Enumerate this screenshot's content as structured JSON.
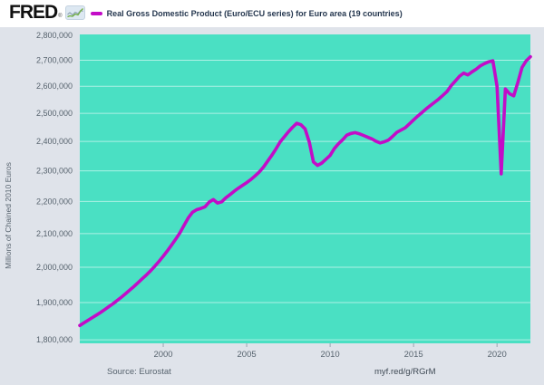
{
  "header": {
    "logo_text": "FRED",
    "registered": "®",
    "legend": {
      "swatch_color": "#c30cc7"
    }
  },
  "colors": {
    "page_bg": "#dfe3ea",
    "header_bg": "#ffffff",
    "plot_bg": "#4ae0c3",
    "grid": "rgba(255,255,255,0.55)",
    "line": "#c30cc7",
    "tick_text": "#57636e"
  },
  "chart_data": {
    "type": "line",
    "title": "Real Gross Domestic Product (Euro/ECU series) for Euro area (19 countries)",
    "ylabel": "Millions of Chained 2010 Euros",
    "xlabel": "",
    "y_scale": "log",
    "ylim": [
      1791000,
      2803000
    ],
    "grid": true,
    "legend_position": "top",
    "y_ticks": [
      {
        "value": 2800000,
        "label": "2,800,000"
      },
      {
        "value": 2700000,
        "label": "2,700,000"
      },
      {
        "value": 2600000,
        "label": "2,600,000"
      },
      {
        "value": 2500000,
        "label": "2,500,000"
      },
      {
        "value": 2400000,
        "label": "2,400,000"
      },
      {
        "value": 2300000,
        "label": "2,300,000"
      },
      {
        "value": 2200000,
        "label": "2,200,000"
      },
      {
        "value": 2100000,
        "label": "2,100,000"
      },
      {
        "value": 2000000,
        "label": "2,000,000"
      },
      {
        "value": 1900000,
        "label": "1,900,000"
      },
      {
        "value": 1800000,
        "label": "1,800,000"
      }
    ],
    "x_ticks": [
      2000,
      2005,
      2010,
      2015,
      2020
    ],
    "x_range": [
      1995.0,
      2022.0
    ],
    "frequency": "quarterly",
    "series": [
      {
        "name": "Real Gross Domestic Product (Euro/ECU series) for Euro area (19 countries)",
        "color": "#c30cc7",
        "start_year": 1995.0,
        "step_years": 0.25,
        "values": [
          1838000,
          1845000,
          1852000,
          1859000,
          1866000,
          1873000,
          1881000,
          1889000,
          1897000,
          1906000,
          1915000,
          1925000,
          1935000,
          1945000,
          1956000,
          1967000,
          1978000,
          1990000,
          2003000,
          2017000,
          2032000,
          2048000,
          2065000,
          2083000,
          2102000,
          2125000,
          2148000,
          2166000,
          2174000,
          2178000,
          2183000,
          2198000,
          2206000,
          2195000,
          2199000,
          2212000,
          2222000,
          2233000,
          2243000,
          2252000,
          2261000,
          2271000,
          2283000,
          2296000,
          2312000,
          2332000,
          2352000,
          2374000,
          2398000,
          2416000,
          2434000,
          2450000,
          2464000,
          2459000,
          2444000,
          2398000,
          2330000,
          2318000,
          2326000,
          2339000,
          2352000,
          2375000,
          2392000,
          2406000,
          2422000,
          2428000,
          2431000,
          2427000,
          2421000,
          2415000,
          2409000,
          2401000,
          2395000,
          2399000,
          2405000,
          2418000,
          2432000,
          2440000,
          2448000,
          2462000,
          2476000,
          2490000,
          2503000,
          2516000,
          2528000,
          2540000,
          2552000,
          2566000,
          2580000,
          2602000,
          2620000,
          2638000,
          2650000,
          2643000,
          2655000,
          2665000,
          2678000,
          2687000,
          2694000,
          2698000,
          2600000,
          2290000,
          2590000,
          2572000,
          2564000,
          2615000,
          2672000,
          2698000,
          2714000
        ]
      }
    ]
  },
  "footer": {
    "source": "Source: Eurostat",
    "link": "myf.red/g/RGrM"
  }
}
